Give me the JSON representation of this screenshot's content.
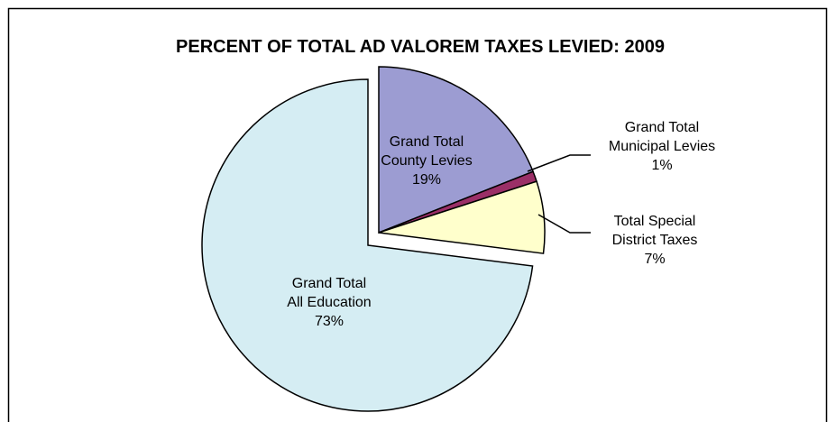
{
  "chart_data": {
    "type": "pie",
    "title": "PERCENT OF TOTAL AD VALOREM TAXES LEVIED:  2009",
    "categories": [
      "Grand Total\nCounty Levies",
      "Grand Total\nMunicipal Levies",
      "Total Special\nDistrict Taxes",
      "Grand Total\nAll Education"
    ],
    "values": [
      19,
      1,
      7,
      73
    ],
    "value_labels": [
      "19%",
      "1%",
      "7%",
      "73%"
    ],
    "colors": [
      "#9c9cd2",
      "#9b2f67",
      "#ffffcc",
      "#d5edf3"
    ]
  }
}
